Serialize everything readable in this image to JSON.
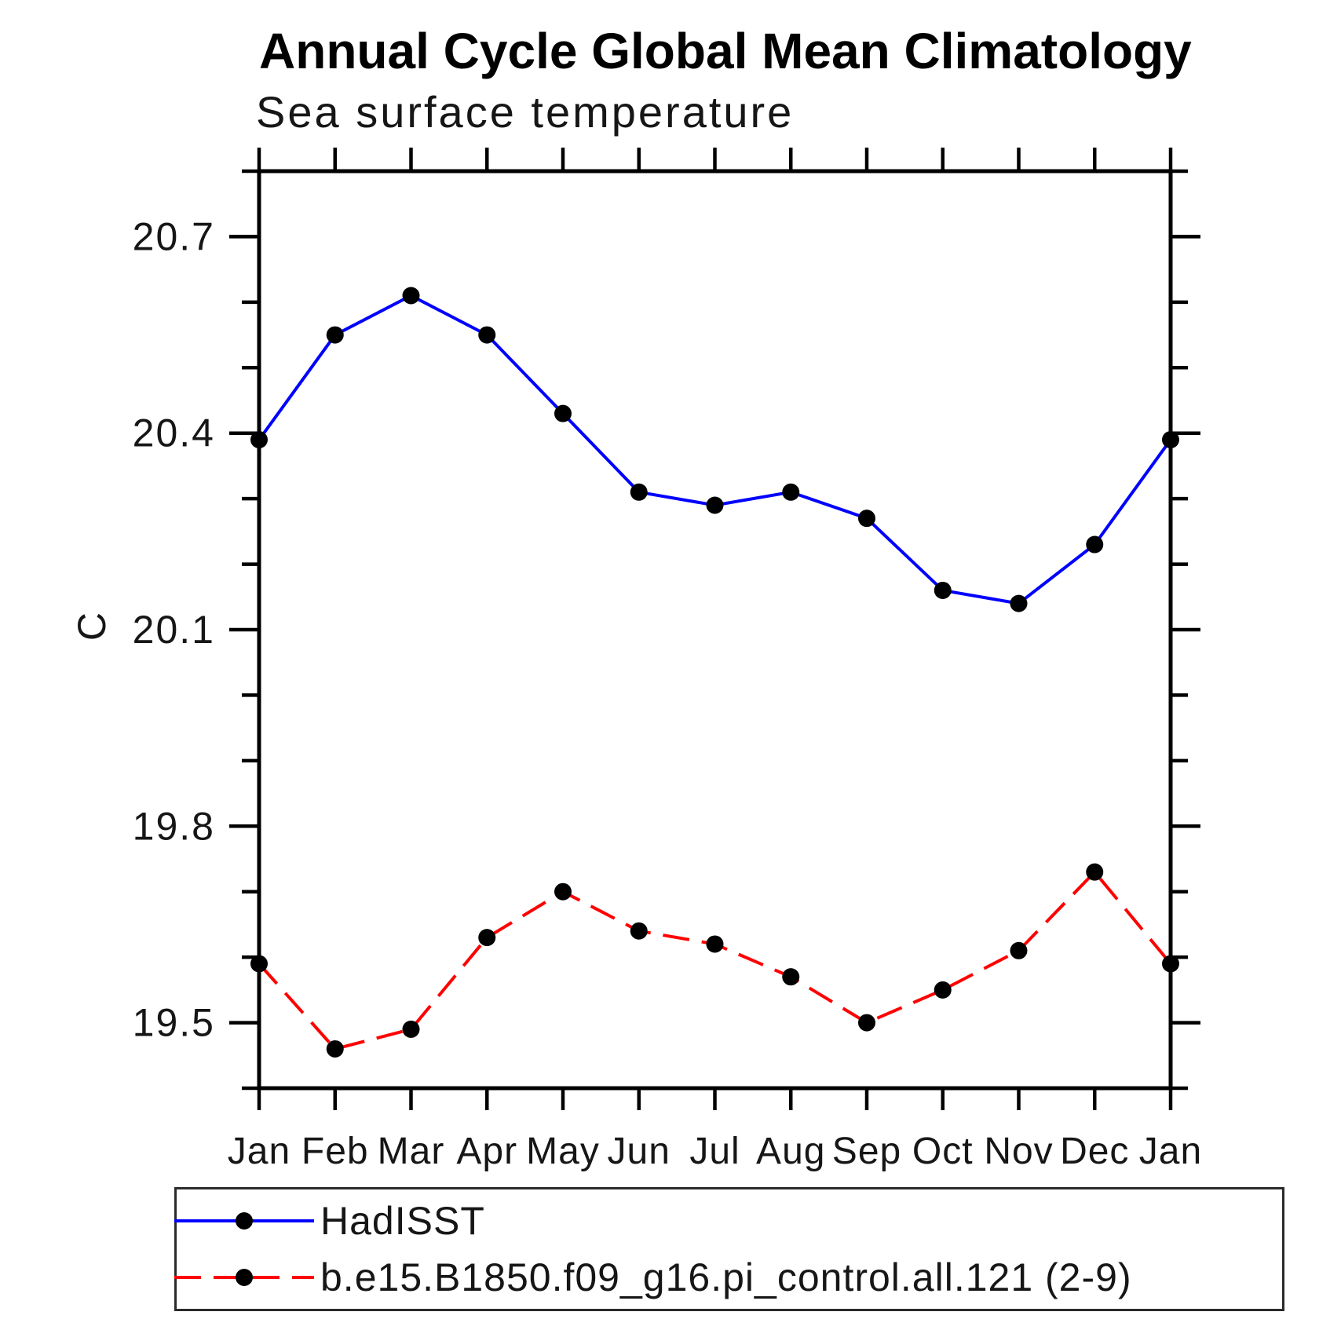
{
  "chart_data": {
    "type": "line",
    "title": "Annual Cycle Global Mean Climatology",
    "subtitle": "Sea surface temperature",
    "ylabel": "C",
    "categories": [
      "Jan",
      "Feb",
      "Mar",
      "Apr",
      "May",
      "Jun",
      "Jul",
      "Aug",
      "Sep",
      "Oct",
      "Nov",
      "Dec",
      "Jan"
    ],
    "ylim": [
      19.4,
      20.8
    ],
    "y_major_ticks": [
      19.5,
      19.8,
      20.1,
      20.4,
      20.7
    ],
    "y_minor_step": 0.1,
    "grid": false,
    "legend_position": "bottom",
    "axis_color": "#000000",
    "marker_color": "#000000",
    "series": [
      {
        "name": "HadISST",
        "color": "#0000ff",
        "style": "solid",
        "marker": "circle",
        "values": [
          20.39,
          20.55,
          20.61,
          20.55,
          20.43,
          20.31,
          20.29,
          20.31,
          20.27,
          20.16,
          20.14,
          20.23,
          20.39
        ]
      },
      {
        "name": "b.e15.B1850.f09_g16.pi_control.all.121 (2-9)",
        "color": "#ff0000",
        "style": "dashed",
        "marker": "circle",
        "values": [
          19.59,
          19.46,
          19.49,
          19.63,
          19.7,
          19.64,
          19.62,
          19.57,
          19.5,
          19.55,
          19.61,
          19.73,
          19.59
        ]
      }
    ]
  }
}
